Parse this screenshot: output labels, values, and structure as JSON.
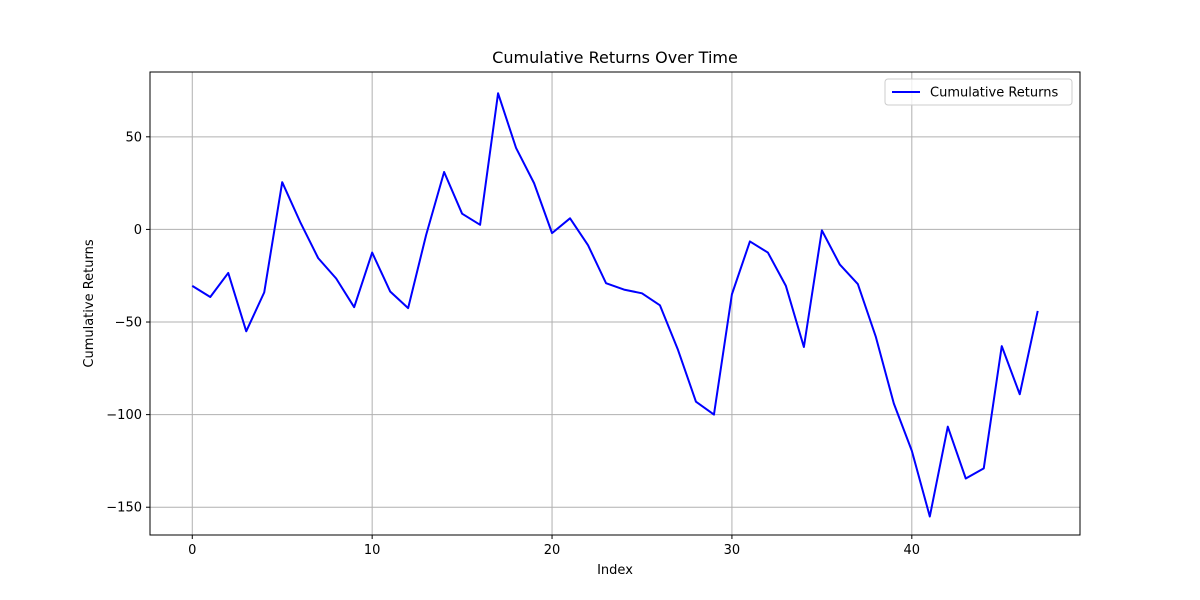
{
  "chart_data": {
    "type": "line",
    "title": "Cumulative Returns Over Time",
    "xlabel": "Index",
    "ylabel": "Cumulative Returns",
    "xlim": [
      -2.35,
      49.35
    ],
    "ylim": [
      -165,
      85
    ],
    "xticks": [
      0,
      10,
      20,
      30,
      40
    ],
    "yticks": [
      -150,
      -100,
      -50,
      0,
      50
    ],
    "grid": true,
    "legend": {
      "placement": "top-right"
    },
    "series": [
      {
        "name": "Cumulative Returns",
        "color": "#0000ff",
        "x": [
          0,
          1,
          2,
          3,
          4,
          5,
          6,
          7,
          8,
          9,
          10,
          11,
          12,
          13,
          14,
          15,
          16,
          17,
          18,
          19,
          20,
          21,
          22,
          23,
          24,
          25,
          26,
          27,
          28,
          29,
          30,
          31,
          32,
          33,
          34,
          35,
          36,
          37,
          38,
          39,
          40,
          41,
          42,
          43,
          44,
          45,
          46,
          47
        ],
        "values": [
          -30.5,
          -36.5,
          -23.5,
          -55,
          -34,
          25.5,
          4,
          -15.5,
          -26.5,
          -42,
          -12.5,
          -33.5,
          -42.5,
          -3,
          31,
          8.5,
          2.5,
          73.5,
          44,
          25,
          -2,
          6,
          -8.5,
          -29,
          -32.5,
          -34.5,
          -41,
          -65,
          -93,
          -100,
          -35,
          -6.5,
          -12.5,
          -30.5,
          -63.5,
          -0.5,
          -19,
          -29.5,
          -58,
          -94,
          -119.5,
          -155,
          -106.5,
          -134.5,
          -129,
          -63,
          -89,
          -44
        ]
      }
    ]
  }
}
